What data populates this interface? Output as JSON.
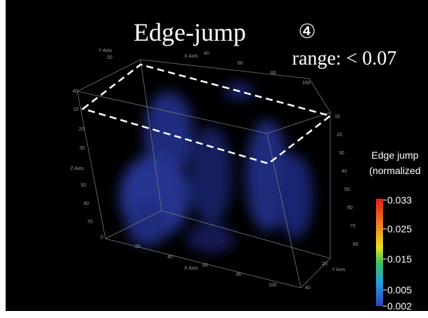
{
  "title": "Edge-jump",
  "step": "④",
  "range_label": "range: < 0.07",
  "colorbar": {
    "title": [
      "Edge jump",
      "(normalized"
    ],
    "ticks": [
      "0.033",
      "0.025",
      "0.015",
      "0.005",
      "0.002"
    ]
  },
  "axes": {
    "top_y": {
      "label": "Y Axis",
      "ticks": [
        "20",
        "40",
        "10"
      ]
    },
    "top_x": {
      "label": "X Axis",
      "ticks": [
        "40",
        "60",
        "80",
        "100"
      ]
    },
    "left_z": {
      "label": "Z Axis",
      "ticks": [
        "20",
        "30",
        "50",
        "60",
        "70",
        "0"
      ]
    },
    "right_z": {
      "ticks": [
        "10",
        "20",
        "30",
        "40",
        "50",
        "60",
        "70",
        "80"
      ]
    },
    "bottom_x": {
      "label": "X Axis",
      "ticks": [
        "20",
        "40",
        "60",
        "80",
        "100"
      ]
    },
    "bottom_y": {
      "label": "Y Axis",
      "ticks": [
        "20",
        "40"
      ]
    }
  }
}
